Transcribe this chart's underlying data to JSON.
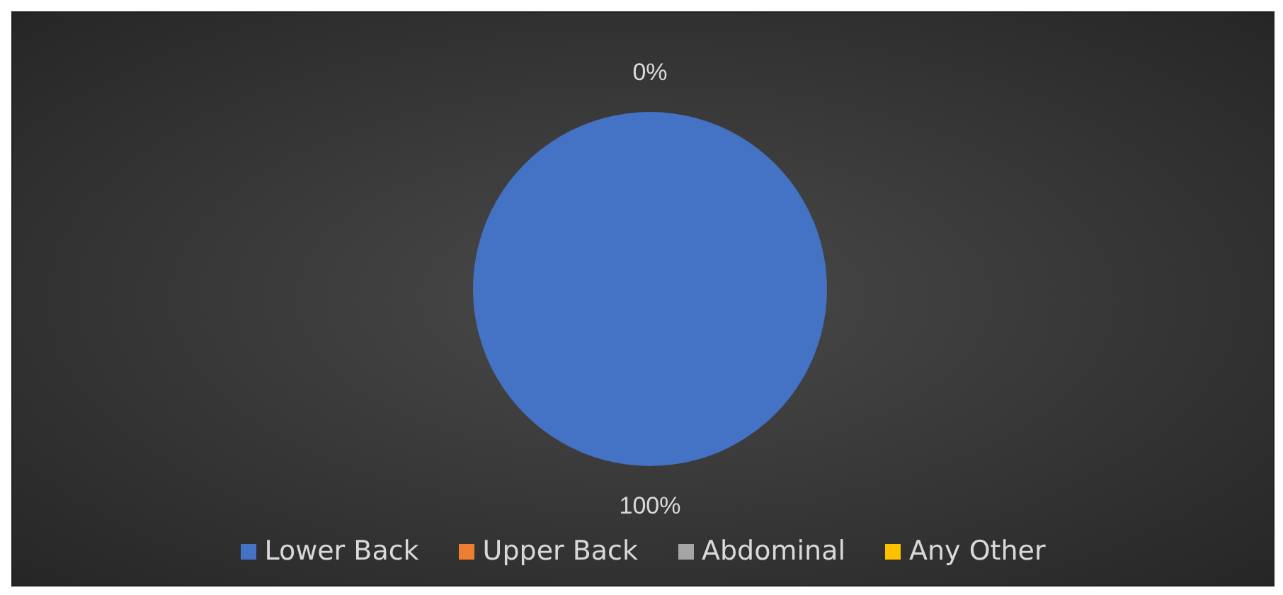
{
  "chart_data": {
    "type": "pie",
    "categories": [
      "Lower Back",
      "Upper Back",
      "Abdominal",
      "Any Other"
    ],
    "values": [
      100,
      0,
      0,
      0
    ],
    "colors": [
      "#4472c4",
      "#ed7d31",
      "#a5a5a5",
      "#ffc000"
    ],
    "value_labels": [
      "100%",
      "0%",
      null,
      null
    ],
    "legend": "bottom"
  }
}
